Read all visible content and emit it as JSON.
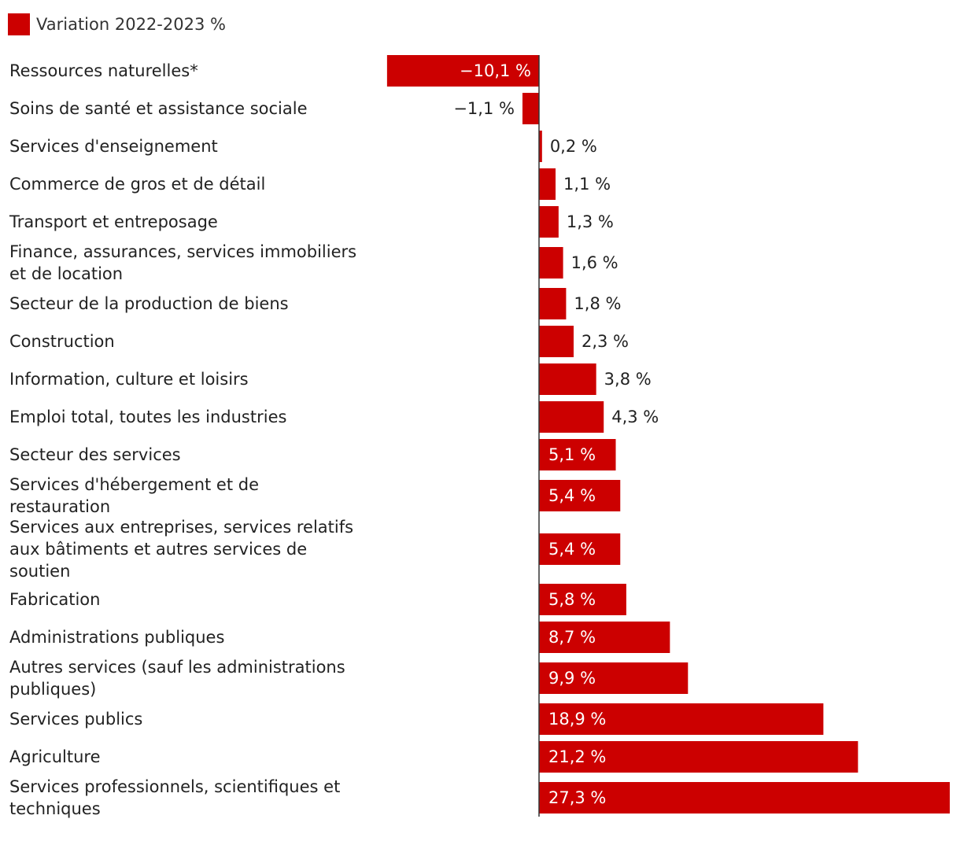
{
  "colors": {
    "bar": "#cc0000",
    "axis": "#333333",
    "text": "#222222",
    "inside_label": "#ffffff"
  },
  "chart_data": {
    "type": "bar",
    "orientation": "horizontal",
    "legend": "Variation 2022-2023 %",
    "xlim": [
      -10.1,
      27.3
    ],
    "categories": [
      "Ressources naturelles*",
      "Soins de santé et assistance sociale",
      "Services d'enseignement",
      "Commerce de gros et de détail",
      "Transport et entreposage",
      "Finance, assurances, services immobiliers et de location",
      "Secteur de la production de biens",
      "Construction",
      "Information, culture et loisirs",
      "Emploi total, toutes les industries",
      "Secteur des services",
      "Services d'hébergement et de restauration",
      "Services aux entreprises, services relatifs aux bâtiments et autres services de soutien",
      "Fabrication",
      "Administrations publiques",
      "Autres services (sauf les administrations publiques)",
      "Services publics",
      "Agriculture",
      "Services professionnels, scientifiques et techniques"
    ],
    "category_lines": [
      [
        "Ressources naturelles*"
      ],
      [
        "Soins de santé et assistance sociale"
      ],
      [
        "Services d'enseignement"
      ],
      [
        "Commerce de gros et de détail"
      ],
      [
        "Transport et entreposage"
      ],
      [
        "Finance, assurances, services immobiliers",
        "et de location"
      ],
      [
        "Secteur de la production de biens"
      ],
      [
        "Construction"
      ],
      [
        "Information, culture et loisirs"
      ],
      [
        "Emploi total, toutes les industries"
      ],
      [
        "Secteur des services"
      ],
      [
        "Services d'hébergement et de",
        "restauration"
      ],
      [
        "Services aux entreprises, services relatifs",
        "aux bâtiments et autres services de",
        "soutien"
      ],
      [
        "Fabrication"
      ],
      [
        "Administrations publiques"
      ],
      [
        "Autres services (sauf les administrations",
        "publiques)"
      ],
      [
        "Services publics"
      ],
      [
        "Agriculture"
      ],
      [
        "Services professionnels, scientifiques et",
        "techniques"
      ]
    ],
    "values": [
      -10.1,
      -1.1,
      0.2,
      1.1,
      1.3,
      1.6,
      1.8,
      2.3,
      3.8,
      4.3,
      5.1,
      5.4,
      5.4,
      5.8,
      8.7,
      9.9,
      18.9,
      21.2,
      27.3
    ],
    "value_labels": [
      "−10,1 %",
      "−1,1 %",
      "0,2 %",
      "1,1 %",
      "1,3 %",
      "1,6 %",
      "1,8 %",
      "2,3 %",
      "3,8 %",
      "4,3 %",
      "5,1 %",
      "5,4 %",
      "5,4 %",
      "5,8 %",
      "8,7 %",
      "9,9 %",
      "18,9 %",
      "21,2 %",
      "27,3 %"
    ]
  }
}
